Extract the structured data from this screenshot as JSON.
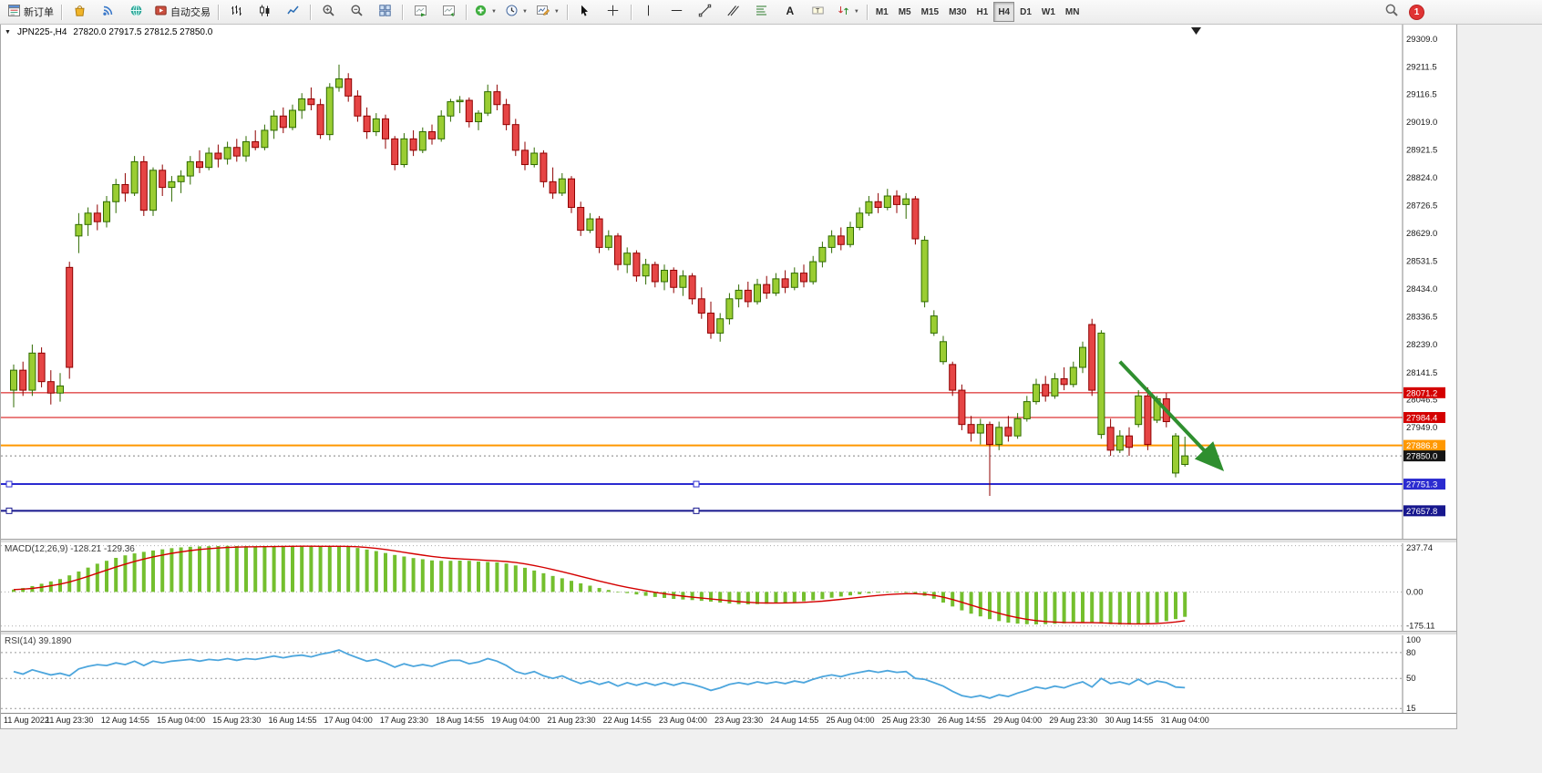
{
  "toolbar": {
    "new_order_label": "新订单",
    "autotrading_label": "自动交易",
    "timeframes": [
      {
        "label": "M1"
      },
      {
        "label": "M5"
      },
      {
        "label": "M15"
      },
      {
        "label": "M30"
      },
      {
        "label": "H1"
      },
      {
        "label": "H4",
        "active": true
      },
      {
        "label": "D1"
      },
      {
        "label": "W1"
      },
      {
        "label": "MN"
      }
    ],
    "notification_count": "1"
  },
  "chart": {
    "symbol_period": "JPN225-,H4",
    "ohlc_text": "27820.0 27917.5 27812.5 27850.0"
  },
  "chart_data": {
    "type": "candlestick",
    "symbol": "JPN225-",
    "timeframe": "H4",
    "last_ohlc": {
      "open": 27820.0,
      "high": 27917.5,
      "low": 27812.5,
      "close": 27850.0
    },
    "price_pane": {
      "ymin": 27560,
      "ymax": 29360,
      "axis_labels": [
        "29309.0",
        "29211.5",
        "29116.5",
        "29019.0",
        "28921.5",
        "28824.0",
        "28726.5",
        "28629.0",
        "28531.5",
        "28434.0",
        "28336.5",
        "28239.0",
        "28141.5",
        "28046.5",
        "27949.0"
      ],
      "colors": {
        "bull": "#9acd32",
        "bull_border": "#2f6b00",
        "bear": "#e64545",
        "bear_border": "#8f0000"
      },
      "candles": [
        [
          28080,
          28170,
          28020,
          28150
        ],
        [
          28150,
          28180,
          28060,
          28080
        ],
        [
          28080,
          28240,
          28060,
          28210
        ],
        [
          28210,
          28230,
          28090,
          28110
        ],
        [
          28110,
          28150,
          28030,
          28070
        ],
        [
          28070,
          28140,
          28040,
          28095
        ],
        [
          28510,
          28530,
          28120,
          28160
        ],
        [
          28620,
          28700,
          28560,
          28660
        ],
        [
          28660,
          28720,
          28620,
          28700
        ],
        [
          28700,
          28730,
          28640,
          28670
        ],
        [
          28670,
          28760,
          28650,
          28740
        ],
        [
          28740,
          28820,
          28700,
          28800
        ],
        [
          28800,
          28840,
          28740,
          28770
        ],
        [
          28770,
          28900,
          28760,
          28880
        ],
        [
          28880,
          28900,
          28690,
          28710
        ],
        [
          28710,
          28860,
          28690,
          28850
        ],
        [
          28850,
          28870,
          28760,
          28790
        ],
        [
          28790,
          28830,
          28740,
          28810
        ],
        [
          28810,
          28850,
          28770,
          28830
        ],
        [
          28830,
          28900,
          28800,
          28880
        ],
        [
          28880,
          28920,
          28840,
          28860
        ],
        [
          28860,
          28930,
          28850,
          28910
        ],
        [
          28910,
          28940,
          28860,
          28890
        ],
        [
          28890,
          28950,
          28870,
          28930
        ],
        [
          28930,
          28960,
          28880,
          28900
        ],
        [
          28900,
          28970,
          28880,
          28950
        ],
        [
          28950,
          28990,
          28920,
          28930
        ],
        [
          28930,
          29010,
          28920,
          28990
        ],
        [
          28990,
          29060,
          28960,
          29040
        ],
        [
          29040,
          29070,
          28980,
          29000
        ],
        [
          29000,
          29080,
          28990,
          29060
        ],
        [
          29060,
          29120,
          29030,
          29100
        ],
        [
          29100,
          29140,
          29060,
          29080
        ],
        [
          29080,
          29100,
          28960,
          28975
        ],
        [
          28975,
          29155,
          28955,
          29140
        ],
        [
          29140,
          29220,
          29125,
          29170
        ],
        [
          29170,
          29190,
          29090,
          29110
        ],
        [
          29110,
          29130,
          29020,
          29040
        ],
        [
          29040,
          29070,
          28960,
          28985
        ],
        [
          28985,
          29050,
          28970,
          29030
        ],
        [
          29030,
          29045,
          28925,
          28960
        ],
        [
          28960,
          28970,
          28850,
          28870
        ],
        [
          28870,
          28980,
          28860,
          28960
        ],
        [
          28960,
          28990,
          28900,
          28920
        ],
        [
          28920,
          29000,
          28910,
          28985
        ],
        [
          28985,
          29010,
          28940,
          28960
        ],
        [
          28960,
          29060,
          28950,
          29040
        ],
        [
          29040,
          29100,
          29020,
          29090
        ],
        [
          29090,
          29110,
          29050,
          29095
        ],
        [
          29095,
          29105,
          29000,
          29020
        ],
        [
          29020,
          29060,
          28990,
          29050
        ],
        [
          29050,
          29150,
          29040,
          29125
        ],
        [
          29125,
          29150,
          29060,
          29080
        ],
        [
          29080,
          29100,
          28990,
          29010
        ],
        [
          29010,
          29030,
          28900,
          28920
        ],
        [
          28920,
          28950,
          28850,
          28870
        ],
        [
          28870,
          28930,
          28860,
          28910
        ],
        [
          28910,
          28920,
          28790,
          28810
        ],
        [
          28810,
          28860,
          28750,
          28770
        ],
        [
          28770,
          28840,
          28760,
          28820
        ],
        [
          28820,
          28830,
          28700,
          28720
        ],
        [
          28720,
          28740,
          28620,
          28640
        ],
        [
          28640,
          28700,
          28630,
          28680
        ],
        [
          28680,
          28690,
          28560,
          28580
        ],
        [
          28580,
          28640,
          28570,
          28620
        ],
        [
          28620,
          28630,
          28500,
          28520
        ],
        [
          28520,
          28580,
          28490,
          28560
        ],
        [
          28560,
          28570,
          28460,
          28480
        ],
        [
          28480,
          28540,
          28450,
          28520
        ],
        [
          28520,
          28530,
          28440,
          28460
        ],
        [
          28460,
          28520,
          28430,
          28500
        ],
        [
          28500,
          28510,
          28420,
          28440
        ],
        [
          28440,
          28500,
          28410,
          28480
        ],
        [
          28480,
          28490,
          28380,
          28400
        ],
        [
          28400,
          28440,
          28330,
          28350
        ],
        [
          28350,
          28390,
          28260,
          28280
        ],
        [
          28280,
          28350,
          28250,
          28330
        ],
        [
          28330,
          28420,
          28310,
          28400
        ],
        [
          28400,
          28450,
          28370,
          28430
        ],
        [
          28430,
          28460,
          28370,
          28390
        ],
        [
          28390,
          28470,
          28380,
          28450
        ],
        [
          28450,
          28480,
          28400,
          28420
        ],
        [
          28420,
          28490,
          28410,
          28470
        ],
        [
          28470,
          28500,
          28420,
          28440
        ],
        [
          28440,
          28510,
          28430,
          28490
        ],
        [
          28490,
          28520,
          28440,
          28460
        ],
        [
          28460,
          28550,
          28450,
          28530
        ],
        [
          28530,
          28600,
          28510,
          28580
        ],
        [
          28580,
          28640,
          28560,
          28620
        ],
        [
          28620,
          28650,
          28570,
          28590
        ],
        [
          28590,
          28670,
          28580,
          28650
        ],
        [
          28650,
          28720,
          28640,
          28700
        ],
        [
          28700,
          28760,
          28690,
          28740
        ],
        [
          28740,
          28770,
          28700,
          28720
        ],
        [
          28720,
          28785,
          28710,
          28760
        ],
        [
          28760,
          28780,
          28700,
          28730
        ],
        [
          28730,
          28770,
          28680,
          28750
        ],
        [
          28750,
          28760,
          28590,
          28610
        ],
        [
          28390,
          28620,
          28370,
          28605
        ],
        [
          28280,
          28360,
          28270,
          28340
        ],
        [
          28180,
          28270,
          28170,
          28250
        ],
        [
          28170,
          28180,
          28060,
          28080
        ],
        [
          28080,
          28100,
          27940,
          27960
        ],
        [
          27960,
          27990,
          27900,
          27930
        ],
        [
          27930,
          27980,
          27890,
          27960
        ],
        [
          27960,
          27970,
          27710,
          27890
        ],
        [
          27890,
          27970,
          27870,
          27950
        ],
        [
          27950,
          27990,
          27900,
          27920
        ],
        [
          27920,
          28000,
          27910,
          27980
        ],
        [
          27980,
          28060,
          27970,
          28040
        ],
        [
          28040,
          28120,
          28030,
          28100
        ],
        [
          28100,
          28130,
          28040,
          28060
        ],
        [
          28060,
          28140,
          28050,
          28120
        ],
        [
          28120,
          28160,
          28080,
          28100
        ],
        [
          28100,
          28180,
          28090,
          28160
        ],
        [
          28160,
          28250,
          28140,
          28230
        ],
        [
          28310,
          28330,
          28060,
          28080
        ],
        [
          27925,
          28290,
          27910,
          28280
        ],
        [
          27950,
          27980,
          27850,
          27870
        ],
        [
          27870,
          27940,
          27860,
          27920
        ],
        [
          27920,
          27950,
          27850,
          27880
        ],
        [
          27960,
          28080,
          27950,
          28060
        ],
        [
          28060,
          28090,
          27870,
          27890
        ],
        [
          27975,
          28060,
          27965,
          28050
        ],
        [
          28050,
          28070,
          27950,
          27970
        ],
        [
          27790,
          27930,
          27775,
          27920
        ],
        [
          27820,
          27917.5,
          27812.5,
          27850
        ]
      ],
      "hlines": [
        {
          "price": 28071.2,
          "label": "28071.2",
          "color": "#d40000",
          "width": 1
        },
        {
          "price": 27984.4,
          "label": "27984.4",
          "color": "#d40000",
          "width": 1
        },
        {
          "price": 27886.8,
          "label": "27886.8",
          "color": "#ff9800",
          "width": 2
        },
        {
          "price": 27751.3,
          "label": "27751.3",
          "color": "#2b2bd0",
          "width": 2,
          "handles": true
        },
        {
          "price": 27657.8,
          "label": "27657.8",
          "color": "#17178e",
          "width": 2,
          "handles": true
        }
      ],
      "current_price": {
        "price": 27850.0,
        "label": "27850.0",
        "color": "#151515"
      },
      "trend_arrow": {
        "from_candle": 119,
        "from_price": 28180,
        "to_candle": 129.8,
        "to_price": 27810,
        "color": "#2f8f2f"
      }
    },
    "macd_pane": {
      "label": "MACD(12,26,9) -128.21 -129.36",
      "macd_value": -128.21,
      "signal_value": -129.36,
      "axis_labels": [
        "237.74",
        "0.00",
        "-175.11"
      ],
      "ymin": -200,
      "ymax": 250,
      "colors": {
        "histogram": "#74bf2e",
        "signal": "#d40000"
      },
      "histogram": [
        12,
        20,
        30,
        42,
        54,
        66,
        85,
        105,
        125,
        145,
        160,
        175,
        188,
        198,
        206,
        213,
        219,
        225,
        229,
        232,
        234,
        235,
        236,
        237,
        236,
        235,
        234,
        234,
        235,
        236,
        237,
        236,
        235,
        234,
        234,
        235,
        232,
        226,
        218,
        210,
        200,
        190,
        182,
        174,
        168,
        162,
        160,
        160,
        161,
        160,
        156,
        154,
        152,
        146,
        136,
        124,
        110,
        96,
        82,
        70,
        57,
        44,
        32,
        20,
        10,
        1,
        -6,
        -13,
        -20,
        -26,
        -31,
        -36,
        -39,
        -42,
        -46,
        -50,
        -55,
        -60,
        -63,
        -64,
        -63,
        -61,
        -58,
        -55,
        -52,
        -48,
        -43,
        -37,
        -30,
        -24,
        -18,
        -12,
        -7,
        -4,
        -2,
        -2,
        -4,
        -10,
        -20,
        -35,
        -55,
        -75,
        -95,
        -112,
        -126,
        -140,
        -150,
        -158,
        -163,
        -166,
        -167,
        -166,
        -164,
        -162,
        -160,
        -158,
        -160,
        -163,
        -166,
        -168,
        -168,
        -165,
        -162,
        -158,
        -150,
        -140,
        -128.21
      ]
    },
    "rsi_pane": {
      "label": "RSI(14) 39.1890",
      "value": 39.189,
      "axis_labels": [
        "100",
        "80",
        "50",
        "15"
      ],
      "levels": [
        80,
        50,
        15
      ],
      "ymin": 10,
      "ymax": 100,
      "color": "#4da6dd",
      "values": [
        58,
        55,
        60,
        57,
        54,
        56,
        53,
        61,
        64,
        66,
        65,
        68,
        66,
        70,
        65,
        70,
        68,
        70,
        71,
        72,
        70,
        72,
        71,
        73,
        71,
        73,
        72,
        74,
        76,
        74,
        76,
        77,
        75,
        78,
        80,
        83,
        78,
        74,
        70,
        72,
        68,
        63,
        67,
        64,
        66,
        64,
        68,
        71,
        71,
        67,
        69,
        73,
        70,
        65,
        58,
        55,
        58,
        53,
        50,
        53,
        48,
        44,
        47,
        43,
        46,
        41,
        45,
        42,
        45,
        42,
        45,
        42,
        45,
        43,
        40,
        36,
        39,
        43,
        45,
        43,
        46,
        44,
        46,
        44,
        47,
        45,
        49,
        52,
        54,
        52,
        55,
        57,
        59,
        57,
        59,
        57,
        58,
        50,
        49,
        45,
        41,
        35,
        30,
        28,
        30,
        27,
        31,
        29,
        33,
        36,
        40,
        38,
        41,
        39,
        43,
        46,
        40,
        50,
        44,
        46,
        43,
        49,
        43,
        47,
        45,
        40,
        39.19
      ]
    },
    "time_axis": {
      "candles_per_label": 6,
      "labels": [
        "11 Aug 2022",
        "11 Aug 23:30",
        "12 Aug 14:55",
        "15 Aug 04:00",
        "15 Aug 23:30",
        "16 Aug 14:55",
        "17 Aug 04:00",
        "17 Aug 23:30",
        "18 Aug 14:55",
        "19 Aug 04:00",
        "21 Aug 23:30",
        "22 Aug 14:55",
        "23 Aug 04:00",
        "23 Aug 23:30",
        "24 Aug 14:55",
        "25 Aug 04:00",
        "25 Aug 23:30",
        "26 Aug 14:55",
        "29 Aug 04:00",
        "29 Aug 23:30",
        "30 Aug 14:55",
        "31 Aug 04:00"
      ]
    }
  }
}
